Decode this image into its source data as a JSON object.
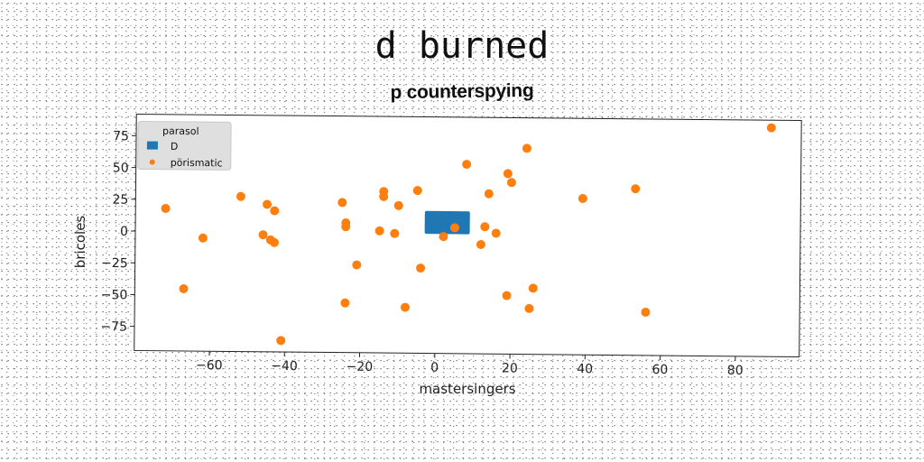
{
  "title": "d burned",
  "chart_data": {
    "type": "scatter",
    "title": "p counterspying",
    "xlabel": "mastersingers",
    "ylabel": "bricoles",
    "xlim": [
      -80,
      97
    ],
    "ylim": [
      -94,
      92
    ],
    "xticks": [
      -60,
      -40,
      -20,
      0,
      20,
      40,
      60,
      80
    ],
    "xtick_labels": [
      "−60",
      "−40",
      "−20",
      "0",
      "20",
      "40",
      "60",
      "80"
    ],
    "yticks": [
      75,
      50,
      25,
      0,
      -25,
      -50,
      -75
    ],
    "ytick_labels": [
      "75",
      "50",
      "25",
      "0",
      "−25",
      "−50",
      "−75"
    ],
    "grid": false,
    "legend": {
      "title": "parasol",
      "placement": "upper-left",
      "entries": [
        {
          "label": "D",
          "marker": "square",
          "color": "#1f77b4"
        },
        {
          "label": "pörismatic",
          "marker": "circle",
          "color": "#ff7f0e"
        }
      ]
    },
    "series": [
      {
        "name": "D",
        "type": "rectangle",
        "color": "#1f77b4",
        "x_range": [
          -3,
          9
        ],
        "y_range": [
          0,
          18
        ]
      },
      {
        "name": "pörismatic",
        "color": "#ff7f0e",
        "points": [
          [
            -72,
            18
          ],
          [
            -67,
            -45
          ],
          [
            -62,
            -5
          ],
          [
            -52,
            28
          ],
          [
            -46,
            -2
          ],
          [
            -45,
            22
          ],
          [
            -43,
            -8
          ],
          [
            -43,
            17
          ],
          [
            -44,
            -6
          ],
          [
            -41,
            -85
          ],
          [
            -25,
            24
          ],
          [
            -24,
            8
          ],
          [
            -24,
            -55
          ],
          [
            -24,
            5
          ],
          [
            -21,
            -25
          ],
          [
            -15,
            2
          ],
          [
            -14,
            29
          ],
          [
            -14,
            33
          ],
          [
            -11,
            0
          ],
          [
            -10,
            22
          ],
          [
            -8,
            -58
          ],
          [
            -5,
            34
          ],
          [
            -4,
            -27
          ],
          [
            2,
            -2
          ],
          [
            5,
            5
          ],
          [
            8,
            55
          ],
          [
            12,
            -8
          ],
          [
            13,
            6
          ],
          [
            14,
            32
          ],
          [
            16,
            1
          ],
          [
            19,
            -48
          ],
          [
            19,
            48
          ],
          [
            20,
            41
          ],
          [
            24,
            68
          ],
          [
            25,
            -58
          ],
          [
            26,
            -42
          ],
          [
            39,
            29
          ],
          [
            53,
            37
          ],
          [
            56,
            -60
          ],
          [
            89,
            86
          ]
        ]
      }
    ]
  }
}
